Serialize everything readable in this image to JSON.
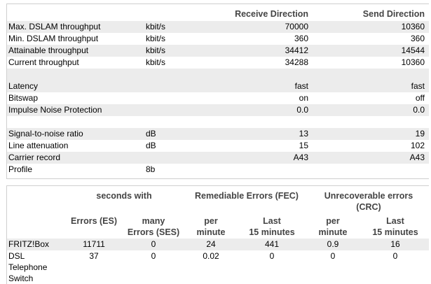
{
  "line_table": {
    "headers": {
      "receive": "Receive Direction",
      "send": "Send Direction"
    },
    "rows": [
      {
        "label": "Max. DSLAM throughput",
        "unit": "kbit/s",
        "receive": "70000",
        "send": "10360"
      },
      {
        "label": "Min. DSLAM throughput",
        "unit": "kbit/s",
        "receive": "360",
        "send": "360"
      },
      {
        "label": "Attainable throughput",
        "unit": "kbit/s",
        "receive": "34412",
        "send": "14544"
      },
      {
        "label": "Current throughput",
        "unit": "kbit/s",
        "receive": "34288",
        "send": "10360"
      },
      {
        "label": "Latency",
        "unit": "",
        "receive": "fast",
        "send": "fast"
      },
      {
        "label": "Bitswap",
        "unit": "",
        "receive": "on",
        "send": "off"
      },
      {
        "label": "Impulse Noise Protection",
        "unit": "",
        "receive": "0.0",
        "send": "0.0"
      },
      {
        "label": "Signal-to-noise ratio",
        "unit": "dB",
        "receive": "13",
        "send": "19"
      },
      {
        "label": "Line attenuation",
        "unit": "dB",
        "receive": "15",
        "send": "102"
      },
      {
        "label": "Carrier record",
        "unit": "",
        "receive": "A43",
        "send": "A43"
      },
      {
        "label": "Profile",
        "unit": "8b",
        "receive": "",
        "send": ""
      }
    ]
  },
  "error_table": {
    "group_headers": {
      "seconds_with": "seconds with",
      "remediable": "Remediable Errors (FEC)",
      "unrecoverable_line1": "Unrecoverable errors",
      "unrecoverable_line2": "(CRC)"
    },
    "sub_headers": {
      "es": "Errors (ES)",
      "ses_line1": "many",
      "ses_line2": "Errors (SES)",
      "fec_per_line1": "per",
      "fec_per_line2": "minute",
      "fec_last_line1": "Last",
      "fec_last_line2": "15 minutes",
      "crc_per_line1": "per",
      "crc_per_line2": "minute",
      "crc_last_line1": "Last",
      "crc_last_line2": "15 minutes"
    },
    "rows": [
      {
        "label": "FRITZ!Box",
        "es": "11711",
        "ses": "0",
        "fec_per_min": "24",
        "fec_last15": "441",
        "crc_per_min": "0.9",
        "crc_last15": "16"
      },
      {
        "label_line1": "DSL",
        "label_line2": "Telephone",
        "label_line3": "Switch",
        "es": "37",
        "ses": "0",
        "fec_per_min": "0.02",
        "fec_last15": "0",
        "crc_per_min": "0",
        "crc_last15": "0"
      }
    ]
  }
}
